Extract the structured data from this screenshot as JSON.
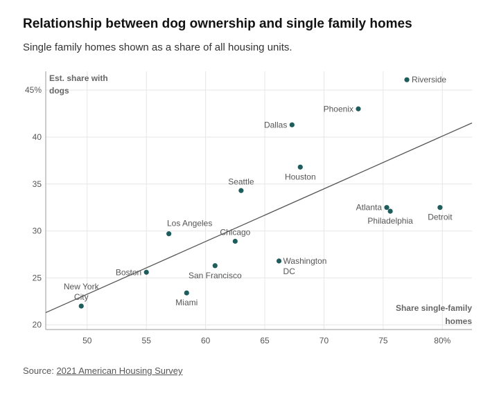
{
  "title": "Relationship between dog ownership and single family homes",
  "subtitle": "Single family homes shown as a share of all housing units.",
  "source": {
    "label": "Source:",
    "link_text": "2021 American Housing Survey"
  },
  "chart_data": {
    "type": "scatter",
    "ylabel_lines": [
      "Est. share with",
      "dogs"
    ],
    "xlabel_lines": [
      "Share single-family",
      "homes"
    ],
    "xlim": [
      46.5,
      82.5
    ],
    "ylim": [
      19.5,
      47
    ],
    "x_ticks": [
      {
        "value": 50,
        "label": "50"
      },
      {
        "value": 55,
        "label": "55"
      },
      {
        "value": 60,
        "label": "60"
      },
      {
        "value": 65,
        "label": "65"
      },
      {
        "value": 70,
        "label": "70"
      },
      {
        "value": 75,
        "label": "75"
      },
      {
        "value": 80,
        "label": "80%"
      }
    ],
    "y_ticks": [
      {
        "value": 20,
        "label": "20"
      },
      {
        "value": 25,
        "label": "25"
      },
      {
        "value": 30,
        "label": "30"
      },
      {
        "value": 35,
        "label": "35"
      },
      {
        "value": 40,
        "label": "40"
      },
      {
        "value": 45,
        "label": "45%"
      }
    ],
    "grid": true,
    "point_color": "#1f5c5c",
    "trendline": {
      "x": [
        46.5,
        82.5
      ],
      "y": [
        21.3,
        41.5
      ],
      "color": "#555555"
    },
    "points": [
      {
        "name": "New York City",
        "lines": [
          "New York",
          "City"
        ],
        "x": 49.5,
        "y": 22.0,
        "pos": "top-center"
      },
      {
        "name": "Boston",
        "lines": [
          "Boston"
        ],
        "x": 55.0,
        "y": 25.6,
        "pos": "left"
      },
      {
        "name": "Los Angeles",
        "lines": [
          "Los Angeles"
        ],
        "x": 56.9,
        "y": 29.7,
        "pos": "top-right"
      },
      {
        "name": "Miami",
        "lines": [
          "Miami"
        ],
        "x": 58.4,
        "y": 23.4,
        "pos": "bottom"
      },
      {
        "name": "San Francisco",
        "lines": [
          "San Francisco"
        ],
        "x": 60.8,
        "y": 26.3,
        "pos": "bottom"
      },
      {
        "name": "Chicago",
        "lines": [
          "Chicago"
        ],
        "x": 62.5,
        "y": 28.9,
        "pos": "top-center"
      },
      {
        "name": "Seattle",
        "lines": [
          "Seattle"
        ],
        "x": 63.0,
        "y": 34.3,
        "pos": "top-center"
      },
      {
        "name": "Washington DC",
        "lines": [
          "Washington",
          "DC"
        ],
        "x": 66.2,
        "y": 26.8,
        "pos": "right-block"
      },
      {
        "name": "Dallas",
        "lines": [
          "Dallas"
        ],
        "x": 67.3,
        "y": 41.3,
        "pos": "left"
      },
      {
        "name": "Houston",
        "lines": [
          "Houston"
        ],
        "x": 68.0,
        "y": 36.8,
        "pos": "bottom"
      },
      {
        "name": "Phoenix",
        "lines": [
          "Phoenix"
        ],
        "x": 72.9,
        "y": 43.0,
        "pos": "left"
      },
      {
        "name": "Atlanta",
        "lines": [
          "Atlanta"
        ],
        "x": 75.3,
        "y": 32.5,
        "pos": "left"
      },
      {
        "name": "Philadelphia",
        "lines": [
          "Philadelphia"
        ],
        "x": 75.6,
        "y": 32.1,
        "pos": "bottom"
      },
      {
        "name": "Riverside",
        "lines": [
          "Riverside"
        ],
        "x": 77.0,
        "y": 46.1,
        "pos": "right"
      },
      {
        "name": "Detroit",
        "lines": [
          "Detroit"
        ],
        "x": 79.8,
        "y": 32.5,
        "pos": "bottom"
      }
    ]
  }
}
